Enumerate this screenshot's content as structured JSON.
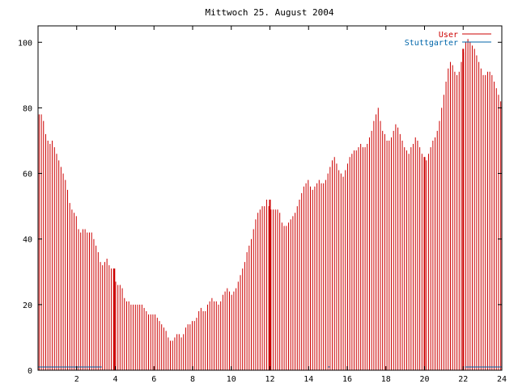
{
  "colors": {
    "user": "#cc0000",
    "stuttgarter": "#0066aa",
    "axis": "#000000",
    "background": "#ffffff"
  },
  "chart_data": {
    "type": "bar",
    "title": "Mittwoch 25. August 2004",
    "xlabel": "",
    "ylabel": "",
    "xlim": [
      0,
      24
    ],
    "ylim": [
      0,
      105
    ],
    "x_ticks": [
      2,
      4,
      6,
      8,
      10,
      12,
      14,
      16,
      18,
      20,
      22,
      24
    ],
    "x_tick_labels": [
      "2",
      "4",
      "6",
      "8",
      "10",
      "12",
      "14",
      "16",
      "18",
      "20",
      "22",
      "24"
    ],
    "y_ticks": [
      0,
      20,
      40,
      60,
      80,
      100
    ],
    "y_tick_labels": [
      "0",
      "20",
      "40",
      "60",
      "80",
      "100"
    ],
    "grid": false,
    "legend_position": "top-right",
    "series": [
      {
        "name": "User",
        "interval_hours": 0.0833,
        "values": [
          78,
          78,
          76,
          72,
          70,
          69,
          70,
          68,
          66,
          64,
          62,
          60,
          58,
          55,
          51,
          49,
          48,
          47,
          43,
          42,
          43,
          43,
          42,
          42,
          42,
          40,
          38,
          36,
          33,
          32,
          33,
          34,
          32,
          31,
          31,
          27,
          26,
          26,
          25,
          22,
          21,
          21,
          20,
          20,
          20,
          20,
          20,
          20,
          19,
          18,
          17,
          17,
          17,
          17,
          16,
          15,
          14,
          13,
          12,
          10,
          9,
          9,
          10,
          11,
          11,
          10,
          11,
          13,
          14,
          14,
          15,
          15,
          16,
          18,
          19,
          18,
          18,
          20,
          21,
          22,
          21,
          21,
          20,
          21,
          23,
          24,
          25,
          24,
          23,
          24,
          25,
          27,
          29,
          31,
          33,
          36,
          38,
          40,
          43,
          46,
          48,
          49,
          50,
          50,
          52,
          50,
          49,
          49,
          49,
          49,
          48,
          45,
          44,
          44,
          45,
          46,
          47,
          48,
          50,
          52,
          54,
          56,
          57,
          58,
          56,
          55,
          56,
          57,
          58,
          57,
          57,
          58,
          60,
          62,
          64,
          65,
          63,
          61,
          60,
          59,
          61,
          63,
          65,
          66,
          67,
          67,
          68,
          69,
          68,
          68,
          69,
          71,
          73,
          76,
          78,
          80,
          76,
          73,
          72,
          70,
          70,
          71,
          73,
          75,
          74,
          72,
          70,
          68,
          67,
          66,
          68,
          69,
          71,
          70,
          68,
          66,
          65,
          64,
          66,
          68,
          70,
          71,
          73,
          76,
          80,
          84,
          88,
          92,
          94,
          93,
          91,
          90,
          91,
          94,
          97,
          100,
          101,
          100,
          99,
          98,
          96,
          94,
          92,
          90,
          90,
          91,
          91,
          90,
          88,
          86,
          84,
          82
        ],
        "spikes": [
          {
            "x": 3.95,
            "value": 31
          },
          {
            "x": 12.0,
            "value": 52
          },
          {
            "x": 20.0,
            "value": 65
          },
          {
            "x": 22.0,
            "value": 98
          }
        ]
      },
      {
        "name": "Stuttgarter",
        "segments": [
          {
            "from": 0.0,
            "to": 3.3,
            "value": 1
          },
          {
            "from": 15.0,
            "to": 15.1,
            "value": 1
          },
          {
            "from": 22.1,
            "to": 24.0,
            "value": 1
          }
        ]
      }
    ]
  }
}
